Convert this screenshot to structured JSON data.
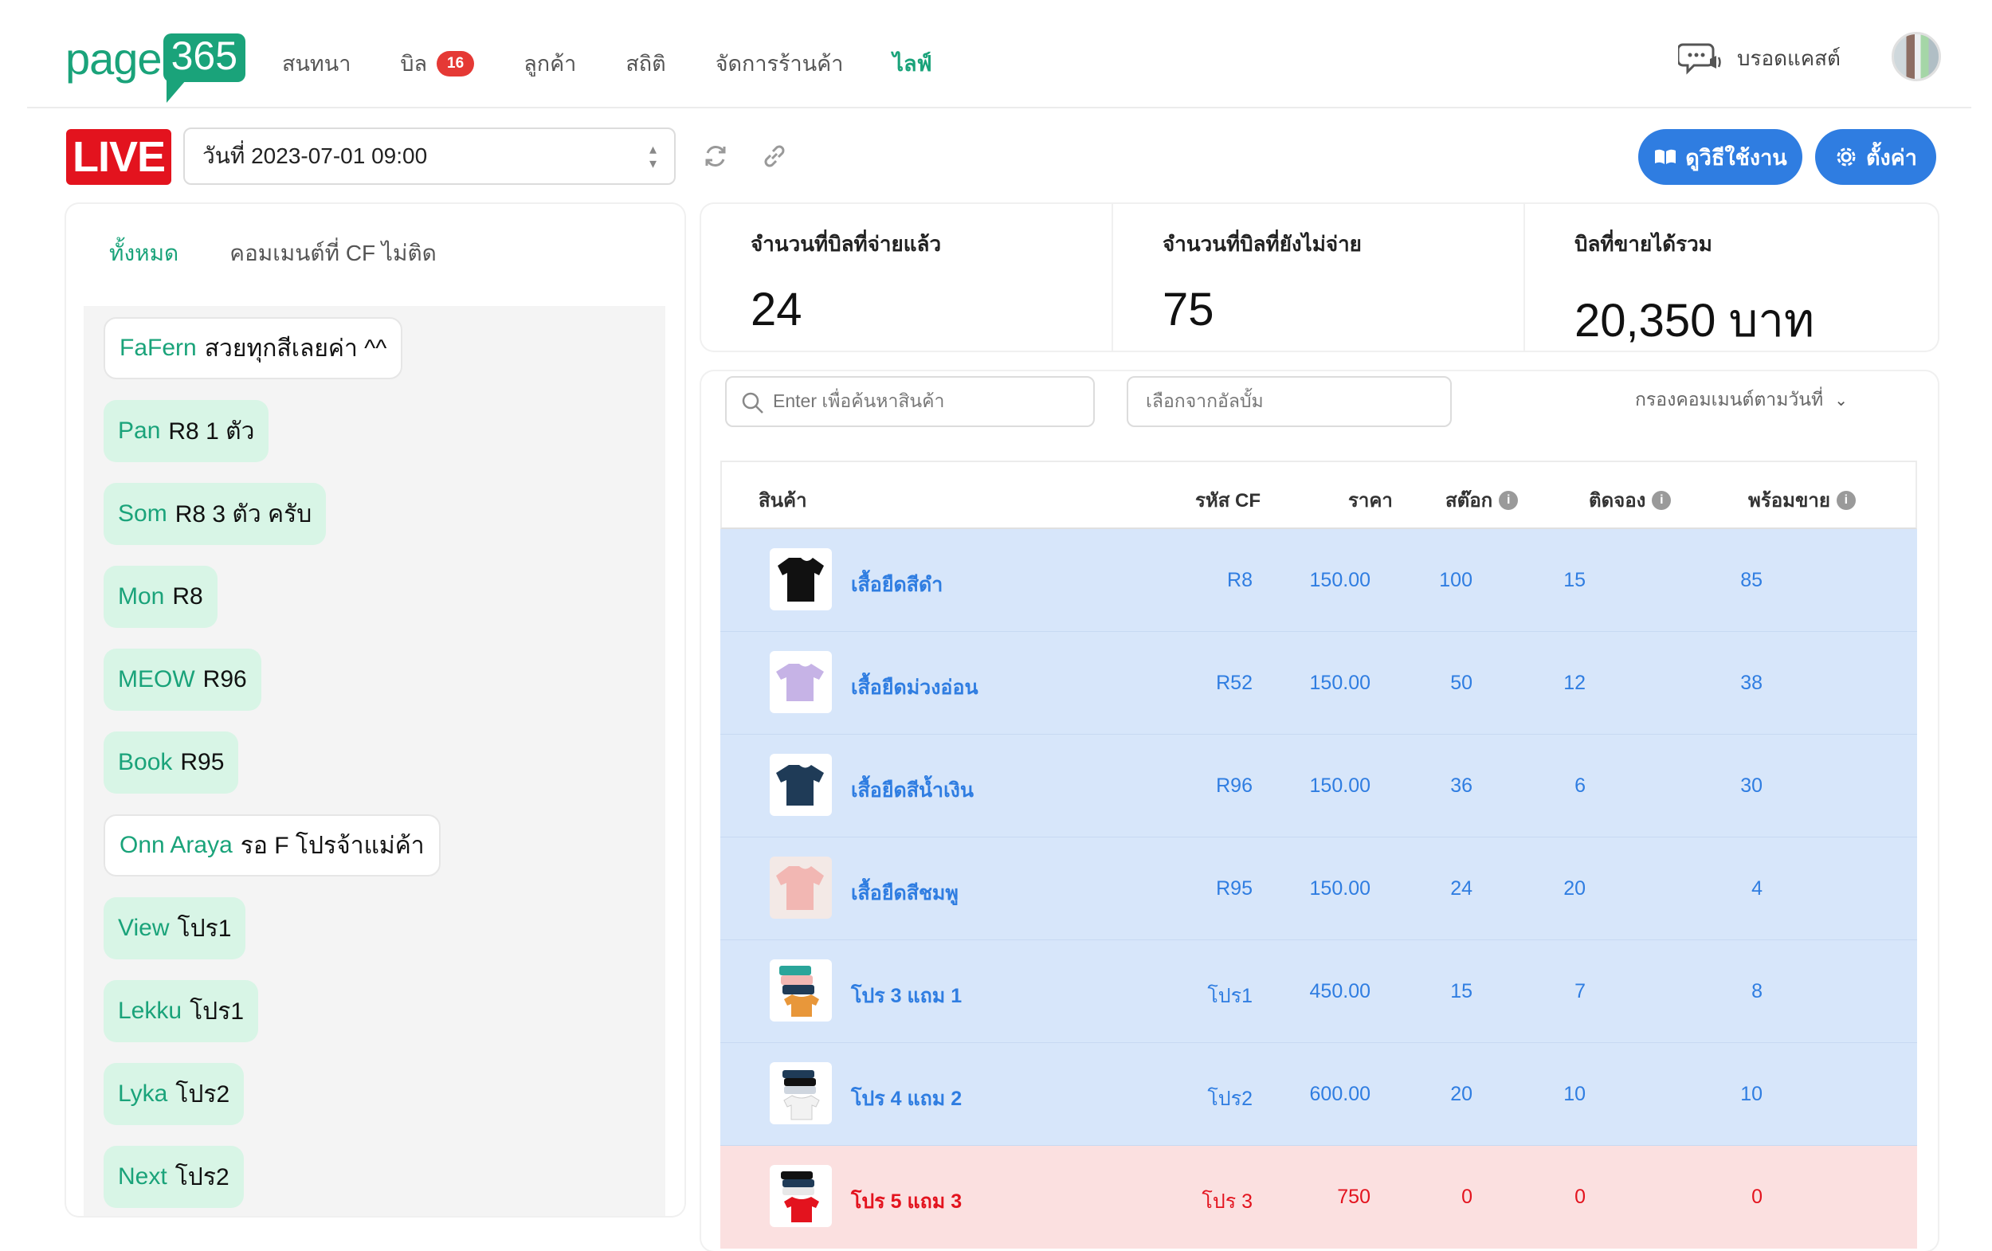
{
  "header": {
    "logo_text": "page",
    "logo_bubble": "365",
    "nav": [
      {
        "label": "สนทนา"
      },
      {
        "label": "บิล",
        "badge": "16"
      },
      {
        "label": "ลูกค้า"
      },
      {
        "label": "สถิติ"
      },
      {
        "label": "จัดการร้านค้า"
      },
      {
        "label": "ไลฟ์"
      }
    ],
    "broadcast_label": "บรอดแคสต์"
  },
  "controls": {
    "live_label": "LIVE",
    "date_value": "วันที่ 2023-07-01 09:00",
    "guide_button": "ดูวิธีใช้งาน",
    "settings_button": "ตั้งค่า"
  },
  "comments_panel": {
    "tabs": [
      "ทั้งหมด",
      "คอมเมนต์ที่ CF ไม่ติด"
    ],
    "comments": [
      {
        "name": "FaFern",
        "text": "สวยทุกสีเลยค่า ^^",
        "style": "white"
      },
      {
        "name": "Pan",
        "text": "R8 1 ตัว",
        "style": "green"
      },
      {
        "name": "Som",
        "text": "R8 3 ตัว ครับ",
        "style": "green"
      },
      {
        "name": "Mon",
        "text": "R8",
        "style": "green"
      },
      {
        "name": "MEOW",
        "text": "R96",
        "style": "green"
      },
      {
        "name": "Book",
        "text": "R95",
        "style": "green"
      },
      {
        "name": "Onn Araya",
        "text": "รอ F โปรจ้าแม่ค้า",
        "style": "white"
      },
      {
        "name": "View",
        "text": "โปร1",
        "style": "green"
      },
      {
        "name": "Lekku",
        "text": "โปร1",
        "style": "green"
      },
      {
        "name": "Lyka",
        "text": "โปร2",
        "style": "green"
      },
      {
        "name": "Next",
        "text": "โปร2",
        "style": "green"
      }
    ]
  },
  "stats": [
    {
      "label": "จำนวนที่บิลที่จ่ายแล้ว",
      "value": "24"
    },
    {
      "label": "จำนวนที่บิลที่ยังไม่จ่าย",
      "value": "75"
    },
    {
      "label": "บิลที่ขายได้รวม",
      "value": "20,350 บาท"
    }
  ],
  "products_panel": {
    "search_placeholder": "Enter เพื่อค้นหาสินค้า",
    "album_placeholder": "เลือกจากอัลบั้ม",
    "date_filter": "กรองคอมเมนต์ตามวันที่",
    "columns": {
      "product": "สินค้า",
      "cf_code": "รหัส CF",
      "price": "ราคา",
      "stock": "สต๊อก",
      "reserved": "ติดจอง",
      "available": "พร้อมขาย"
    },
    "rows": [
      {
        "name": "เสื้อยืดสีดำ",
        "cf": "R8",
        "price": "150.00",
        "stock": "100",
        "reserved": "15",
        "available": "85",
        "thumb": "black"
      },
      {
        "name": "เสื้อยืดม่วงอ่อน",
        "cf": "R52",
        "price": "150.00",
        "stock": "50",
        "reserved": "12",
        "available": "38",
        "thumb": "purple"
      },
      {
        "name": "เสื้อยืดสีน้ำเงิน",
        "cf": "R96",
        "price": "150.00",
        "stock": "36",
        "reserved": "6",
        "available": "30",
        "thumb": "navy"
      },
      {
        "name": "เสื้อยืดสีชมพู",
        "cf": "R95",
        "price": "150.00",
        "stock": "24",
        "reserved": "20",
        "available": "4",
        "thumb": "pink"
      },
      {
        "name": "โปร 3 แถม 1",
        "cf": "โปร1",
        "price": "450.00",
        "stock": "15",
        "reserved": "7",
        "available": "8",
        "thumb": "stack-orange"
      },
      {
        "name": "โปร 4 แถม 2",
        "cf": "โปร2",
        "price": "600.00",
        "stock": "20",
        "reserved": "10",
        "available": "10",
        "thumb": "stack-white"
      },
      {
        "name": "โปร 5 แถม 3",
        "cf": "โปร 3",
        "price": "750",
        "stock": "0",
        "reserved": "0",
        "available": "0",
        "thumb": "stack-red",
        "sold_out": true
      }
    ]
  },
  "colors": {
    "brand_green": "#1aa37a",
    "live_red": "#e3131e",
    "accent_blue": "#2f7de1",
    "row_blue": "#d7e6fa",
    "row_red": "#fbe0e0",
    "comment_green": "#d8f5e6"
  }
}
